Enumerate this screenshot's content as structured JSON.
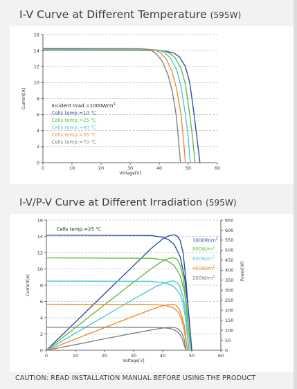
{
  "heading_iv": "I-V Curve at Different Temperature",
  "heading_iv_suffix": "(595W)",
  "heading_ivpv": "I-V/P-V Curve at Different Irradiation",
  "heading_ivpv_suffix": "(595W)",
  "caution": "CAUTION: READ INSTALLATION MANUAL BEFORE USING THE PRODUCT",
  "chart_data": [
    {
      "type": "line",
      "title": "I-V Curve at Different Temperature (595W)",
      "xlabel": "Voltage[V]",
      "ylabel": "Current[A]",
      "xlim": [
        0,
        60
      ],
      "ylim": [
        0,
        16
      ],
      "xticks": [
        "0",
        "10",
        "20",
        "30",
        "40",
        "50",
        "60"
      ],
      "yticks": [
        "0",
        "2",
        "4",
        "6",
        "8",
        "10",
        "12",
        "14",
        "16"
      ],
      "grid": "horizontal-dashed",
      "annotation": "Incident Irrad.=1000W/m",
      "annotation_sup": "2",
      "series": [
        {
          "name": "Cells temp.=10 ℃",
          "color": "#2b4fa8",
          "x": [
            0,
            38,
            42,
            45,
            47,
            49,
            50.5,
            52,
            53,
            54
          ],
          "y": [
            14.1,
            14.05,
            13.95,
            13.7,
            13.2,
            12.0,
            10.0,
            6.0,
            3.0,
            0
          ]
        },
        {
          "name": "Cells temp.=25 ℃",
          "color": "#5fbf3c",
          "x": [
            0,
            37,
            41,
            43.5,
            45.5,
            47.5,
            49,
            50.5,
            51.5,
            52.3
          ],
          "y": [
            14.15,
            14.1,
            14.0,
            13.7,
            13.1,
            11.8,
            9.8,
            6.0,
            3.0,
            0
          ]
        },
        {
          "name": "Cells temp.=40 ℃",
          "color": "#4fc6dc",
          "x": [
            0,
            36,
            40,
            42,
            44,
            46,
            47.5,
            49,
            50,
            50.7
          ],
          "y": [
            14.2,
            14.15,
            14.05,
            13.7,
            13.0,
            11.6,
            9.5,
            6.0,
            3.0,
            0
          ]
        },
        {
          "name": "Cells temp.=55 ℃",
          "color": "#f28c2f",
          "x": [
            0,
            35,
            38.5,
            40.5,
            42.5,
            44.5,
            46,
            47.5,
            48.3,
            49
          ],
          "y": [
            14.25,
            14.2,
            14.1,
            13.7,
            12.9,
            11.3,
            9.2,
            6.0,
            3.0,
            0
          ]
        },
        {
          "name": "Cells temp.=70 ℃",
          "color": "#808080",
          "x": [
            0,
            33.5,
            37,
            39,
            41,
            43,
            44.5,
            45.8,
            46.6,
            47.3
          ],
          "y": [
            14.3,
            14.25,
            14.1,
            13.6,
            12.7,
            11.0,
            8.9,
            6.0,
            3.0,
            0
          ]
        }
      ]
    },
    {
      "type": "line",
      "title": "I-V/P-V Curve at Different Irradiation (595W)",
      "xlabel": "Voltage[V]",
      "ylabel": "Current[A]",
      "y2label": "Power[W]",
      "xlim": [
        0,
        60
      ],
      "ylim": [
        0,
        16
      ],
      "y2lim": [
        0,
        650
      ],
      "xticks": [
        "0",
        "10",
        "20",
        "30",
        "40",
        "50",
        "60"
      ],
      "yticks": [
        "0",
        "2",
        "4",
        "6",
        "8",
        "10",
        "12",
        "14",
        "16"
      ],
      "y2ticks": [
        "0",
        "50",
        "100",
        "150",
        "200",
        "250",
        "300",
        "350",
        "400",
        "450",
        "500",
        "550",
        "600",
        "650"
      ],
      "grid": "horizontal-dashed",
      "annotation": "Cells temp.=25 ℃",
      "series": [
        {
          "name": "1000W/m",
          "sup": "2",
          "color": "#2b4fa8",
          "iv_x": [
            0,
            36,
            40,
            42,
            44,
            46,
            47.5,
            48.5,
            49.3,
            50
          ],
          "iv_y": [
            14.15,
            14.1,
            13.9,
            13.6,
            13.0,
            11.5,
            9.0,
            6.0,
            3.0,
            0
          ],
          "pv_x": [
            0,
            10,
            20,
            30,
            36,
            40,
            42,
            43.8,
            45,
            46,
            47,
            48,
            49,
            50
          ],
          "pv_y": [
            0,
            141,
            282,
            423,
            508,
            556,
            571,
            577,
            570,
            549,
            490,
            350,
            170,
            0
          ]
        },
        {
          "name": "800W/m",
          "sup": "2",
          "color": "#5fbf3c",
          "iv_x": [
            0,
            36,
            40,
            42,
            44,
            46,
            47.5,
            48.2,
            48.9,
            49.5
          ],
          "iv_y": [
            11.35,
            11.3,
            11.15,
            10.9,
            10.4,
            9.2,
            7.2,
            5.0,
            2.5,
            0
          ],
          "pv_x": [
            0,
            10,
            20,
            30,
            36,
            40,
            42,
            43.7,
            45,
            46,
            47,
            48,
            49,
            49.5
          ],
          "pv_y": [
            0,
            113,
            227,
            340,
            407,
            446,
            458,
            462,
            455,
            425,
            370,
            250,
            100,
            0
          ]
        },
        {
          "name": "600W/m",
          "sup": "2",
          "color": "#4fc6dc",
          "iv_x": [
            0,
            36,
            40,
            42,
            44,
            46,
            47,
            47.8,
            48.4,
            49
          ],
          "iv_y": [
            8.5,
            8.47,
            8.35,
            8.15,
            7.8,
            6.9,
            5.8,
            4.0,
            2.0,
            0
          ],
          "pv_x": [
            0,
            10,
            20,
            30,
            36,
            40,
            42,
            43.5,
            45,
            46,
            47,
            48,
            49
          ],
          "pv_y": [
            0,
            85,
            170,
            255,
            305,
            334,
            343,
            346,
            338,
            315,
            270,
            180,
            0
          ]
        },
        {
          "name": "400W/m",
          "sup": "2",
          "color": "#f28c2f",
          "iv_x": [
            0,
            36,
            40,
            42,
            44,
            45.5,
            46.5,
            47.3,
            48,
            48.5
          ],
          "iv_y": [
            5.65,
            5.63,
            5.55,
            5.42,
            5.15,
            4.6,
            3.8,
            2.6,
            1.2,
            0
          ],
          "pv_x": [
            0,
            10,
            20,
            30,
            36,
            40,
            42,
            43.3,
            44.5,
            45.5,
            46.5,
            47.5,
            48.5
          ],
          "pv_y": [
            0,
            56,
            113,
            170,
            203,
            222,
            228,
            230,
            226,
            210,
            176,
            120,
            0
          ]
        },
        {
          "name": "200W/m",
          "sup": "2",
          "color": "#808080",
          "iv_x": [
            0,
            36,
            40,
            42,
            43.5,
            45,
            46,
            46.8,
            47.4,
            48
          ],
          "iv_y": [
            2.83,
            2.82,
            2.78,
            2.7,
            2.58,
            2.3,
            1.9,
            1.3,
            0.6,
            0
          ],
          "pv_x": [
            0,
            10,
            20,
            30,
            36,
            40,
            42,
            43,
            44.5,
            45.5,
            46.5,
            47.3,
            48
          ],
          "pv_y": [
            0,
            28,
            57,
            85,
            101,
            111,
            114,
            115,
            112,
            104,
            88,
            60,
            0
          ]
        }
      ]
    }
  ]
}
